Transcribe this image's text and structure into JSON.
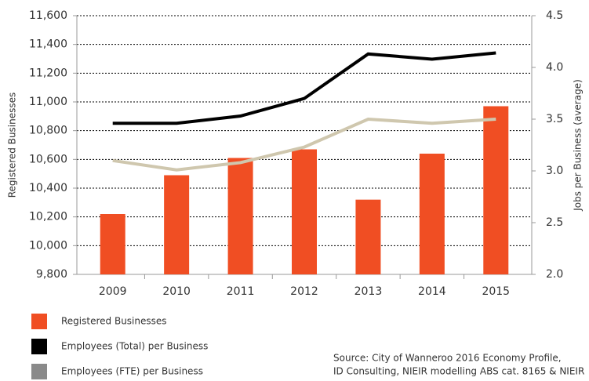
{
  "chart_data": {
    "type": "bar-line",
    "ylabel": "Registered Businesses",
    "y2label": "Jobs per Business (average)",
    "categories": [
      "2009",
      "2010",
      "2011",
      "2012",
      "2013",
      "2014",
      "2015"
    ],
    "series": [
      {
        "name": "Registered Businesses",
        "type": "bar",
        "color": "#f04e23",
        "values": [
          10220,
          10490,
          10610,
          10670,
          10320,
          10640,
          10970
        ]
      },
      {
        "name": "Employees (Total) per Business",
        "type": "line",
        "axis": "y2",
        "color": "#000000",
        "values": [
          3.46,
          3.46,
          3.53,
          3.7,
          4.13,
          4.08,
          4.14
        ]
      },
      {
        "name": "Employees (FTE) per Business",
        "type": "line",
        "axis": "y2",
        "color": "#cfc7ae",
        "legend_color": "#8a8a8a",
        "values": [
          3.1,
          3.01,
          3.08,
          3.23,
          3.5,
          3.46,
          3.5
        ]
      }
    ],
    "ylim": [
      9800,
      11600
    ],
    "yticks": [
      {
        "value": 9800,
        "label": "9,800"
      },
      {
        "value": 10000,
        "label": "10,000"
      },
      {
        "value": 10200,
        "label": "10,200"
      },
      {
        "value": 10400,
        "label": "10,400"
      },
      {
        "value": 10600,
        "label": "10,600"
      },
      {
        "value": 10800,
        "label": "10,800"
      },
      {
        "value": 11000,
        "label": "11,000"
      },
      {
        "value": 11200,
        "label": "11,200"
      },
      {
        "value": 11400,
        "label": "11,400"
      },
      {
        "value": 11600,
        "label": "11,600"
      }
    ],
    "y2lim": [
      2.0,
      4.5
    ],
    "y2ticks": [
      {
        "value": 2.0,
        "label": "2.0"
      },
      2.5,
      {
        "value": 3.0,
        "label": "3.0"
      },
      3.5,
      {
        "value": 4.0,
        "label": "4.0"
      },
      4.5
    ],
    "grid": true,
    "source": [
      "Source: City of Wanneroo 2016 Economy  Profile,",
      "ID Consulting, NIEIR modelling ABS cat. 8165 & NIEIR"
    ]
  }
}
